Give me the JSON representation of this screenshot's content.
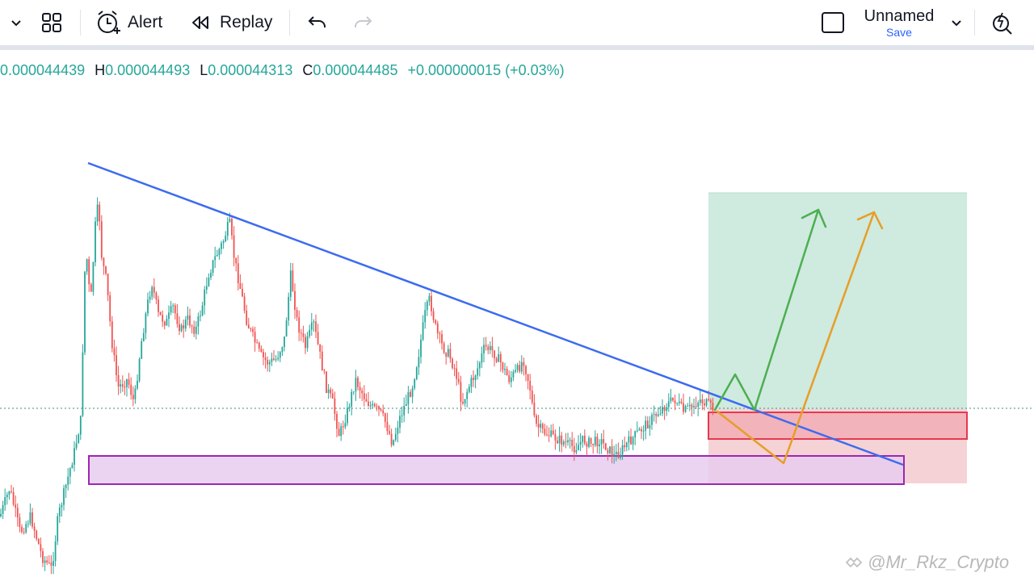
{
  "toolbar": {
    "alert_label": "Alert",
    "replay_label": "Replay",
    "layout_name": "Unnamed",
    "save_label": "Save",
    "icons": [
      "chevron-down-icon",
      "layout-grid-icon",
      "alarm-clock-icon",
      "replay-icon",
      "undo-icon",
      "redo-icon",
      "checkbox-icon",
      "quick-search-icon"
    ]
  },
  "ohlc": {
    "open_label": "",
    "open_value": "0.000044439",
    "high_label": "H",
    "high_value": "0.000044493",
    "low_label": "L",
    "low_value": "0.000044313",
    "close_label": "C",
    "close_value": "0.000044485",
    "change": "+0.000000015 (+0.03%)",
    "color": "#26a69a"
  },
  "colors": {
    "up": "#26a69a",
    "down": "#ef5350",
    "trendline": "#3d6bf0",
    "support_zone_fill": "#e7cdef",
    "support_zone_border": "#9c27b0",
    "target_zone": "#cfeadf",
    "stop_zone": "#f5d2d5",
    "entry_zone": "#f3b3ba",
    "entry_border": "#e53950",
    "green_arrow": "#4caf50",
    "orange_arrow": "#e69e26",
    "accent": "#2962ff"
  },
  "watermark": "@Mr_Rkz_Crypto"
}
